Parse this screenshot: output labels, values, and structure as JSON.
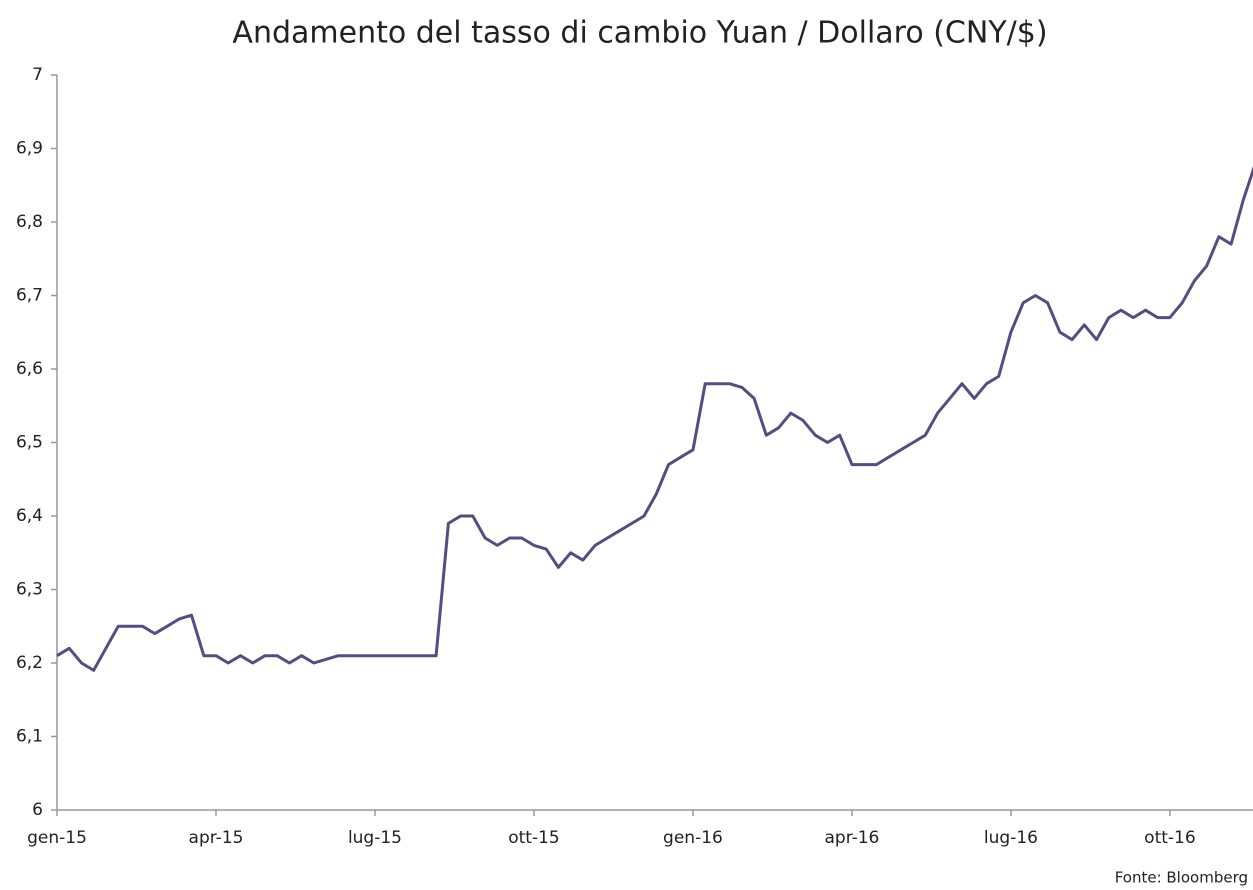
{
  "chart_data": {
    "type": "line",
    "title": "Andamento del tasso di cambio Yuan / Dollaro (CNY/$)",
    "source": "Fonte: Bloomberg",
    "categories": [
      "gen-15",
      null,
      null,
      null,
      null,
      null,
      null,
      null,
      null,
      null,
      null,
      null,
      null,
      "apr-15",
      null,
      null,
      null,
      null,
      null,
      null,
      null,
      null,
      null,
      null,
      null,
      null,
      "lug-15",
      null,
      null,
      null,
      null,
      null,
      null,
      null,
      null,
      null,
      null,
      null,
      null,
      "ott-15",
      null,
      null,
      null,
      null,
      null,
      null,
      null,
      null,
      null,
      null,
      null,
      null,
      "gen-16",
      null,
      null,
      null,
      null,
      null,
      null,
      null,
      null,
      null,
      null,
      null,
      null,
      "apr-16",
      null,
      null,
      null,
      null,
      null,
      null,
      null,
      null,
      null,
      null,
      null,
      null,
      "lug-16",
      null,
      null,
      null,
      null,
      null,
      null,
      null,
      null,
      null,
      null,
      null,
      null,
      "ott-16",
      null,
      null,
      null,
      null,
      null,
      null,
      null
    ],
    "series": [
      {
        "name": "CNY/$",
        "color": "#5b4a80",
        "values": [
          6.21,
          6.22,
          6.2,
          6.19,
          6.22,
          6.25,
          6.25,
          6.25,
          6.24,
          6.25,
          6.26,
          6.265,
          6.21,
          6.21,
          6.2,
          6.21,
          6.2,
          6.21,
          6.21,
          6.2,
          6.21,
          6.2,
          6.205,
          6.21,
          6.21,
          6.21,
          6.21,
          6.21,
          6.21,
          6.21,
          6.21,
          6.21,
          6.39,
          6.4,
          6.4,
          6.37,
          6.36,
          6.37,
          6.37,
          6.36,
          6.355,
          6.33,
          6.35,
          6.34,
          6.36,
          6.37,
          6.38,
          6.39,
          6.4,
          6.43,
          6.47,
          6.48,
          6.49,
          6.58,
          6.58,
          6.58,
          6.575,
          6.56,
          6.51,
          6.52,
          6.54,
          6.53,
          6.51,
          6.5,
          6.51,
          6.47,
          6.47,
          6.47,
          6.48,
          6.49,
          6.5,
          6.51,
          6.54,
          6.56,
          6.58,
          6.56,
          6.58,
          6.59,
          6.65,
          6.69,
          6.7,
          6.69,
          6.65,
          6.64,
          6.66,
          6.64,
          6.67,
          6.68,
          6.67,
          6.68,
          6.67,
          6.67,
          6.69,
          6.72,
          6.74,
          6.78,
          6.77,
          6.83,
          6.88
        ]
      }
    ],
    "ylim": [
      6,
      7
    ],
    "yticks": [
      6,
      {
        "value": 6.1,
        "label": "6,1"
      },
      {
        "value": 6.2,
        "label": "6,2"
      },
      {
        "value": 6.3,
        "label": "6,3"
      },
      {
        "value": 6.4,
        "label": "6,4"
      },
      {
        "value": 6.5,
        "label": "6,5"
      },
      {
        "value": 6.6,
        "label": "6,6"
      },
      {
        "value": 6.7,
        "label": "6,7"
      },
      {
        "value": 6.8,
        "label": "6,8"
      },
      {
        "value": 6.9,
        "label": "6,9"
      },
      7
    ],
    "grid": false
  }
}
